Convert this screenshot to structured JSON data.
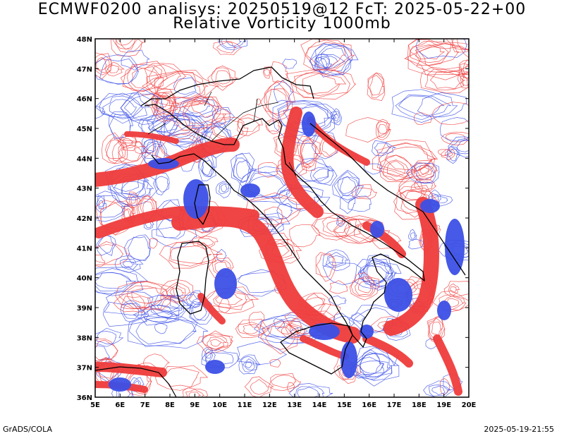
{
  "header": {
    "title_line1": "ECMWF0200 analisys: 20250519@12 FcT: 2025-05-22+00",
    "title_line2": "Relative Vorticity 1000mb"
  },
  "footer": {
    "software": "GrADS/COLA",
    "timestamp": "2025-05-19-21:55"
  },
  "axes": {
    "lon_labels": [
      "5E",
      "6E",
      "7E",
      "8E",
      "9E",
      "10E",
      "11E",
      "12E",
      "13E",
      "14E",
      "15E",
      "16E",
      "17E",
      "18E",
      "19E",
      "20E"
    ],
    "lat_labels": [
      "36N",
      "37N",
      "38N",
      "39N",
      "40N",
      "41N",
      "42N",
      "43N",
      "44N",
      "45N",
      "46N",
      "47N",
      "48N"
    ]
  },
  "colors": {
    "positive_vorticity": "#f03c3c",
    "negative_vorticity": "#3c50e6",
    "coastline": "#000000",
    "frame": "#000000"
  }
}
